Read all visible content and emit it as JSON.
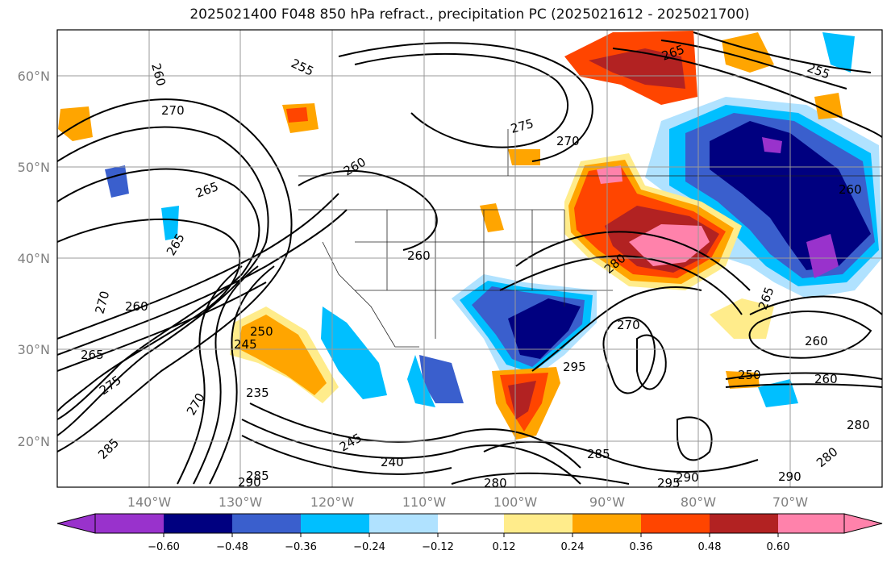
{
  "title": "2025021400 F048 850 hPa refract., precipitation PC (2025021612 - 2025021700)",
  "lat_labels": [
    "60°N",
    "50°N",
    "40°N",
    "30°N",
    "20°N"
  ],
  "lon_labels": [
    "140°W",
    "130°W",
    "120°W",
    "110°W",
    "100°W",
    "90°W",
    "80°W",
    "70°W"
  ],
  "contour_labels": [
    "260",
    "255",
    "270",
    "265",
    "275",
    "270",
    "265",
    "260",
    "255",
    "260",
    "265",
    "260",
    "270",
    "265",
    "260",
    "265",
    "260",
    "250",
    "245",
    "235",
    "240",
    "245",
    "280",
    "270",
    "295",
    "280",
    "285",
    "290",
    "250",
    "260",
    "270",
    "275",
    "280",
    "285",
    "295",
    "290",
    "280",
    "285",
    "290"
  ],
  "colorbar": {
    "ticks": [
      "−0.60",
      "−0.48",
      "−0.36",
      "−0.24",
      "−0.12",
      "0.12",
      "0.24",
      "0.36",
      "0.48",
      "0.60"
    ],
    "colors": [
      "#9932cc",
      "#000080",
      "#3a5fcd",
      "#00bfff",
      "#b0e2ff",
      "#ffffff",
      "#ffec8b",
      "#ffa500",
      "#ff4500",
      "#b22222",
      "#ff82ab"
    ]
  }
}
